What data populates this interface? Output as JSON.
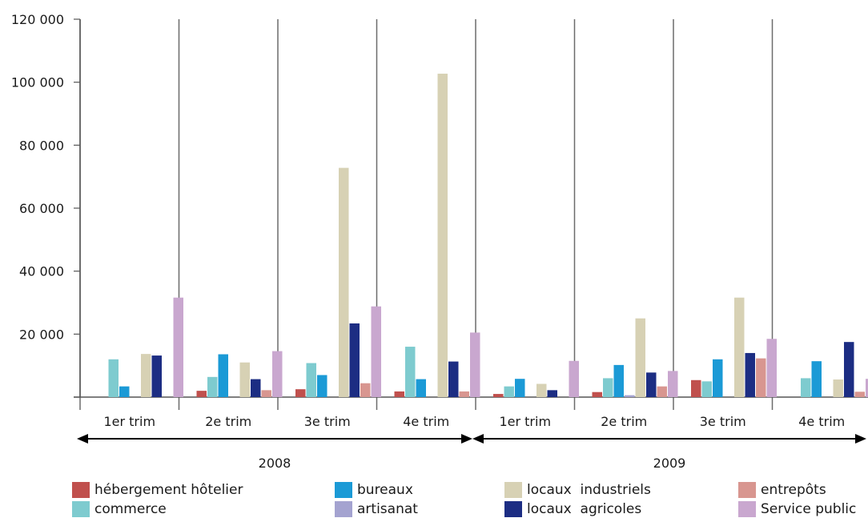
{
  "chart_data": {
    "type": "bar",
    "title": "",
    "xlabel": "",
    "ylabel": "",
    "ylim": [
      0,
      120000
    ],
    "yticks": [
      "0",
      "20 000",
      "40 000",
      "60 000",
      "80 000",
      "100 000",
      "120 000"
    ],
    "grid": true,
    "legend_position": "bottom",
    "categories": [
      "1er trim",
      "2e trim",
      "3e trim",
      "4e trim",
      "1er trim",
      "2e trim",
      "3e trim",
      "4e trim"
    ],
    "year_groups": [
      {
        "label": "2008",
        "categories": [
          0,
          1,
          2,
          3
        ]
      },
      {
        "label": "2009",
        "categories": [
          4,
          5,
          6,
          7
        ]
      }
    ],
    "series": [
      {
        "name": "hébergement hôtelier",
        "color": "#c0504d",
        "values": [
          0,
          2000,
          2500,
          1800,
          1000,
          1600,
          5400,
          0
        ]
      },
      {
        "name": "commerce",
        "color": "#7ecbcf",
        "values": [
          12000,
          6400,
          10800,
          16000,
          3400,
          6000,
          5000,
          6000
        ]
      },
      {
        "name": "bureaux",
        "color": "#1b9ad6",
        "values": [
          3400,
          13600,
          7000,
          5700,
          5800,
          10200,
          12000,
          11400
        ]
      },
      {
        "name": "artisanat",
        "color": "#a4a3d0",
        "values": [
          0,
          0,
          0,
          0,
          0,
          600,
          0,
          0
        ]
      },
      {
        "name": "locaux  industriels",
        "color": "#d7d1b4",
        "values": [
          13700,
          11000,
          72800,
          102700,
          4200,
          25000,
          31600,
          5600
        ]
      },
      {
        "name": "locaux  agricoles",
        "color": "#1c2d83",
        "values": [
          13200,
          5700,
          23400,
          11300,
          2200,
          7800,
          14000,
          17500
        ]
      },
      {
        "name": "entrepôts",
        "color": "#d89690",
        "values": [
          0,
          2200,
          4400,
          1800,
          0,
          3400,
          12300,
          1700
        ]
      },
      {
        "name": "Service public",
        "color": "#c9a7cf",
        "values": [
          31600,
          14600,
          28800,
          20500,
          11500,
          8300,
          18500,
          5800
        ]
      }
    ]
  }
}
